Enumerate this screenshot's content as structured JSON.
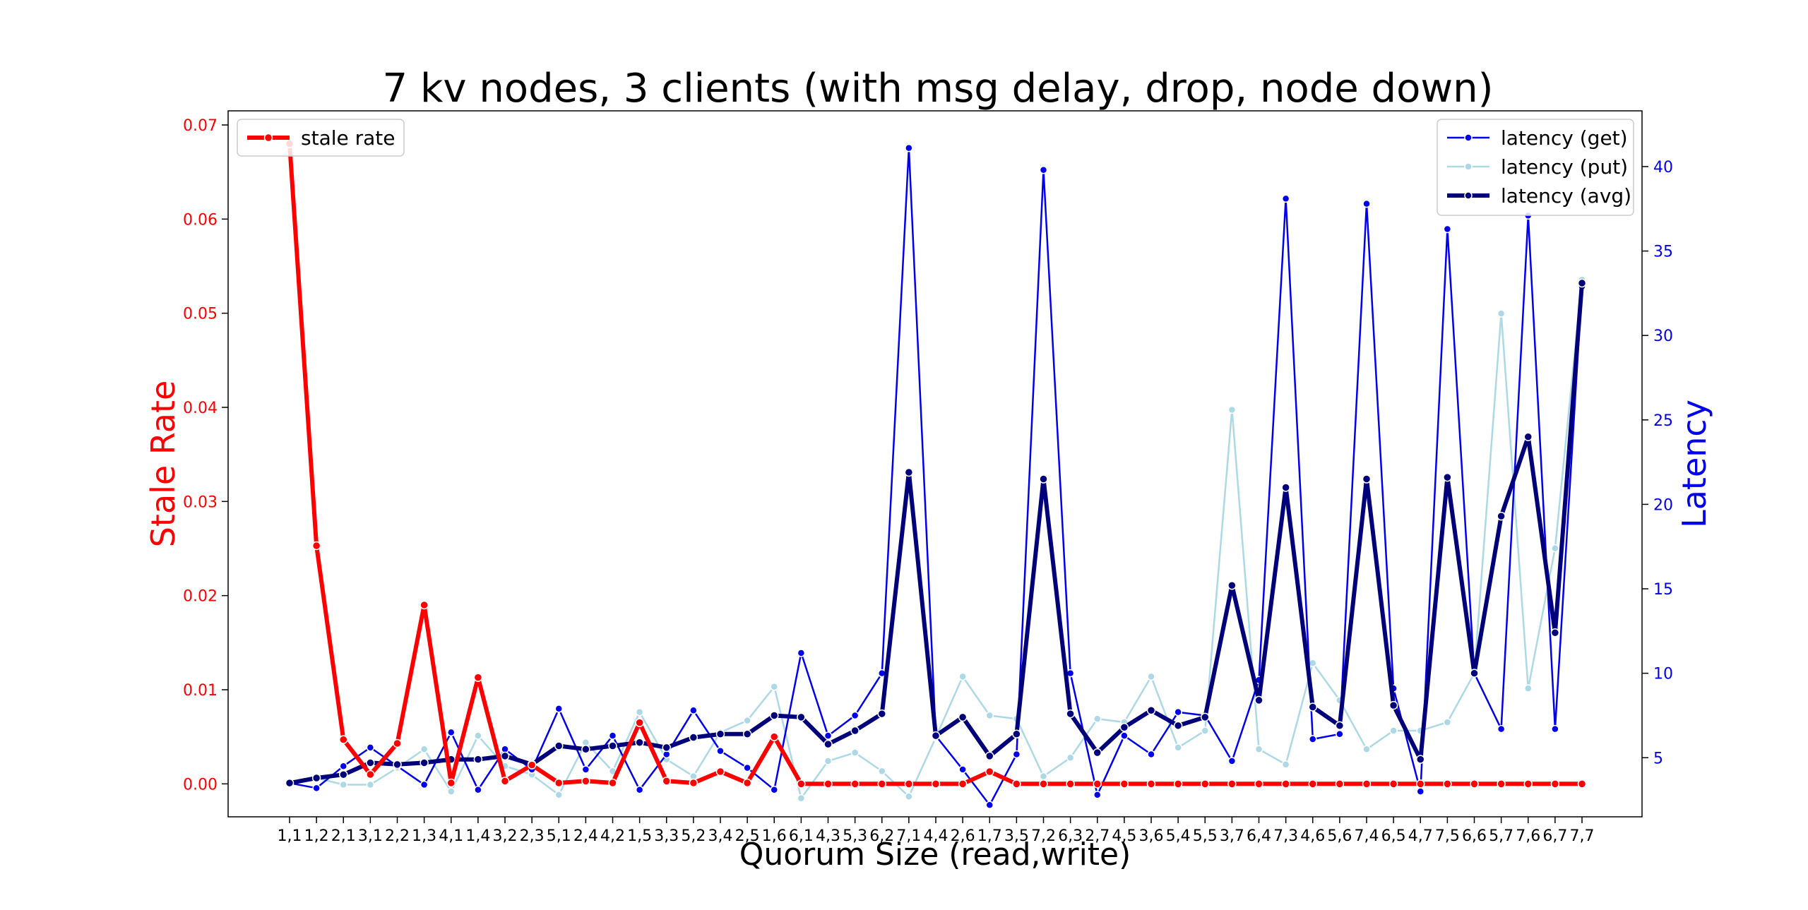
{
  "chart_data": {
    "type": "line",
    "title": "7 kv nodes, 3 clients (with msg delay, drop, node down)",
    "xlabel": "Quorum Size (read,write)",
    "ylabel_left": "Stale Rate",
    "ylabel_right": "Latency",
    "ylim_left": [
      -0.0035,
      0.0715
    ],
    "ylim_right": [
      1.5,
      43.3
    ],
    "yticks_left": [
      "0.00",
      "0.01",
      "0.02",
      "0.03",
      "0.04",
      "0.05",
      "0.06",
      "0.07"
    ],
    "yticks_right": [
      "5",
      "10",
      "15",
      "20",
      "25",
      "30",
      "35",
      "40"
    ],
    "legend_left": "upper-left",
    "legend_right": "upper-right",
    "grid": false,
    "categories": [
      "1,1",
      "1,2",
      "2,1",
      "3,1",
      "2,2",
      "1,3",
      "4,1",
      "1,4",
      "3,2",
      "2,3",
      "5,1",
      "2,4",
      "4,2",
      "1,5",
      "3,3",
      "5,2",
      "3,4",
      "2,5",
      "1,6",
      "6,1",
      "4,3",
      "5,3",
      "6,2",
      "7,1",
      "4,4",
      "2,6",
      "1,7",
      "3,5",
      "7,2",
      "6,3",
      "2,7",
      "4,5",
      "3,6",
      "5,4",
      "5,5",
      "3,7",
      "6,4",
      "7,3",
      "4,6",
      "5,6",
      "7,4",
      "6,5",
      "4,7",
      "7,5",
      "6,6",
      "5,7",
      "7,6",
      "6,7",
      "7,7"
    ],
    "stale_series": {
      "name": "stale rate",
      "color": "#ff0000",
      "values": [
        0.068,
        0.0253,
        0.0047,
        0.001,
        0.0043,
        0.019,
        0.0001,
        0.0113,
        0.0003,
        0.002,
        0.0001,
        0.0003,
        0.0001,
        0.0065,
        0.0003,
        0.0001,
        0.0013,
        0.0001,
        0.005,
        0,
        0,
        0,
        0,
        0,
        0,
        0,
        0.0013,
        0,
        0,
        0,
        0,
        0,
        0,
        0,
        0,
        0,
        0,
        0,
        0,
        0,
        0,
        0,
        0,
        0,
        0,
        0,
        0,
        0,
        0
      ]
    },
    "latency_series": [
      {
        "name": "latency (get)",
        "color": "#0000ee",
        "width": 2.5,
        "values": [
          3.5,
          3.2,
          4.5,
          5.6,
          4.5,
          3.4,
          6.5,
          3.1,
          5.5,
          4.3,
          7.9,
          4.3,
          6.3,
          3.1,
          5.2,
          7.8,
          5.4,
          4.4,
          3.1,
          11.2,
          6.3,
          7.5,
          10,
          41.1,
          6.3,
          4.3,
          2.2,
          5.2,
          39.8,
          10,
          2.8,
          6.3,
          5.2,
          7.7,
          7.5,
          4.8,
          9.6,
          38.1,
          6.1,
          6.4,
          37.8,
          9.1,
          3,
          36.3,
          10,
          6.7,
          37.1,
          6.7,
          32.9
        ]
      },
      {
        "name": "latency (put)",
        "color": "#add8e6",
        "width": 2.5,
        "values": [
          3.4,
          3.8,
          3.4,
          3.4,
          4.4,
          5.5,
          3,
          6.3,
          4.5,
          4,
          2.8,
          5.9,
          4.2,
          7.7,
          4.9,
          3.9,
          6.5,
          7.2,
          9.2,
          2.6,
          4.8,
          5.3,
          4.2,
          2.7,
          6.2,
          9.8,
          7.5,
          7.3,
          3.9,
          5,
          7.3,
          7.1,
          9.8,
          5.6,
          6.6,
          25.6,
          5.5,
          4.6,
          10.6,
          8.4,
          5.5,
          6.6,
          6.6,
          7.1,
          10,
          31.3,
          9.1,
          17.4,
          33.3
        ]
      },
      {
        "name": "latency (avg)",
        "color": "#00007a",
        "width": 6,
        "values": [
          3.5,
          3.8,
          4,
          4.7,
          4.6,
          4.7,
          4.9,
          4.9,
          5.1,
          4.6,
          5.7,
          5.5,
          5.7,
          5.9,
          5.6,
          6.2,
          6.4,
          6.4,
          7.5,
          7.4,
          5.8,
          6.6,
          7.6,
          21.9,
          6.3,
          7.4,
          5.1,
          6.4,
          21.5,
          7.6,
          5.3,
          6.8,
          7.8,
          6.9,
          7.4,
          15.2,
          8.4,
          21,
          8,
          6.9,
          21.5,
          8.1,
          4.9,
          21.6,
          10,
          19.3,
          24,
          12.4,
          33.1
        ]
      }
    ]
  }
}
